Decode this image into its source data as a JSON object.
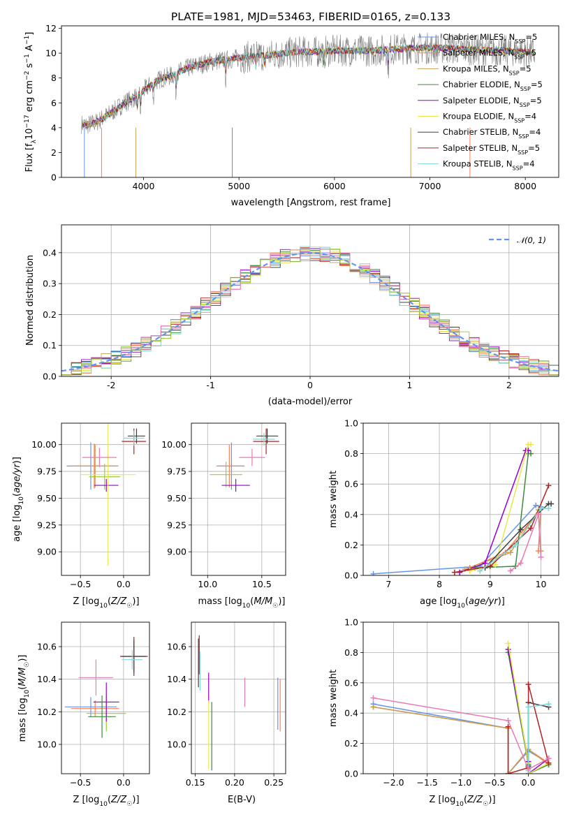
{
  "chart_data": [
    {
      "type": "line",
      "title": "PLATE=1981, MJD=53463, FIBERID=0165, z=0.133",
      "xlabel": "wavelength [Angstrom, rest frame]",
      "ylabel": "Flux [fλ10⁻¹⁷ erg cm⁻² s⁻¹ A⁻¹]",
      "xlim": [
        3140,
        8350
      ],
      "ylim": [
        0,
        12.2
      ],
      "xticks": [
        4000,
        5000,
        6000,
        7000,
        8000
      ],
      "yticks": [
        0,
        2,
        4,
        6,
        8,
        10,
        12
      ],
      "data_color": "#808080",
      "data_series": {
        "x": [
          3350,
          3400,
          3500,
          3600,
          3700,
          3800,
          3900,
          4000,
          4100,
          4200,
          4300,
          4400,
          4500,
          4600,
          4700,
          4800,
          4900,
          5000,
          5200,
          5400,
          5600,
          5800,
          6000,
          6200,
          6400,
          6600,
          6800,
          7000,
          7200,
          7400,
          7600,
          7800,
          8000,
          8100
        ],
        "y": [
          4.3,
          4.2,
          4.4,
          4.9,
          5.4,
          6.0,
          6.4,
          7.0,
          7.6,
          8.0,
          8.2,
          8.6,
          8.9,
          9.1,
          9.3,
          9.4,
          9.5,
          9.6,
          9.8,
          9.9,
          10.1,
          10.1,
          10.2,
          10.2,
          10.2,
          10.3,
          10.4,
          10.4,
          10.4,
          10.3,
          10.2,
          10.2,
          10.1,
          10.0
        ]
      },
      "legend_location": "upper right",
      "series": [
        {
          "name": "Chabrier MILES",
          "nssp": "5",
          "color": "#6495ed"
        },
        {
          "name": "Salpeter MILES",
          "nssp": "5",
          "color": "#ff7f50"
        },
        {
          "name": "Kroupa MILES",
          "nssp": "5",
          "color": "#c8a050"
        },
        {
          "name": "Chabrier ELODIE",
          "nssp": "5",
          "color": "#3c8c3c"
        },
        {
          "name": "Salpeter ELODIE",
          "nssp": "5",
          "color": "#9400d3"
        },
        {
          "name": "Kroupa ELODIE",
          "nssp": "4",
          "color": "#e8e84a"
        },
        {
          "name": "Chabrier STELIB",
          "nssp": "4",
          "color": "#404040"
        },
        {
          "name": "Salpeter STELIB",
          "nssp": "5",
          "color": "#b22222"
        },
        {
          "name": "Kroupa STELIB",
          "nssp": "4",
          "color": "#7fd8d8"
        }
      ]
    },
    {
      "type": "line",
      "xlabel": "(data-model)/error",
      "ylabel": "Normed distribution",
      "xlim": [
        -2.5,
        2.5
      ],
      "ylim": [
        0,
        0.49
      ],
      "xticks": [
        -2,
        -1,
        0,
        1,
        2
      ],
      "yticks": [
        0.0,
        0.1,
        0.2,
        0.3,
        0.4
      ],
      "legend": "𝒩(0, 1)",
      "legend_location": "upper right",
      "gaussian": {
        "mu": 0,
        "sigma": 1,
        "color": "#6495ed"
      },
      "bin_width": 0.1,
      "histogram_colors": [
        "#6495ed",
        "#ff7f50",
        "#c8a050",
        "#3c8c3c",
        "#9400d3",
        "#e8e84a",
        "#404040",
        "#b22222",
        "#7fd8d8",
        "#e87ab4",
        "#9acd32"
      ]
    },
    {
      "type": "scatter",
      "xlabel": "Z [log10(Z/Z☉)]",
      "ylabel": "age  [log10(age/yr)]",
      "xlim": [
        -0.72,
        0.3
      ],
      "ylim": [
        8.78,
        10.2
      ],
      "xticks": [
        -0.5,
        0.0
      ],
      "xtick_labels": [
        "−0.5",
        "0.0"
      ],
      "yticks": [
        9.0,
        9.25,
        9.5,
        9.75,
        10.0
      ],
      "ytick_labels": [
        "9.00",
        "9.25",
        "9.50",
        "9.75",
        "10.00"
      ],
      "points": [
        {
          "x": -0.38,
          "y": 9.8,
          "xerr": 0.28,
          "yerr": 0.22,
          "color": "#6495ed"
        },
        {
          "x": -0.34,
          "y": 9.8,
          "xerr": 0.28,
          "yerr": 0.21,
          "color": "#ff7f50"
        },
        {
          "x": -0.33,
          "y": 9.8,
          "xerr": 0.26,
          "yerr": 0.2,
          "color": "#c8a050"
        },
        {
          "x": -0.22,
          "y": 9.7,
          "xerr": 0.18,
          "yerr": 0.12,
          "color": "#9acd32"
        },
        {
          "x": -0.2,
          "y": 9.62,
          "xerr": 0.14,
          "yerr": 0.06,
          "color": "#9400d3"
        },
        {
          "x": -0.18,
          "y": 9.72,
          "xerr": 0.32,
          "yerr": 0.85,
          "color": "#e8e84a"
        },
        {
          "x": 0.12,
          "y": 10.03,
          "xerr": 0.14,
          "yerr": 0.12,
          "color": "#b22222"
        },
        {
          "x": 0.15,
          "y": 10.08,
          "xerr": 0.1,
          "yerr": 0.07,
          "color": "#404040"
        },
        {
          "x": 0.12,
          "y": 10.06,
          "xerr": 0.12,
          "yerr": 0.07,
          "color": "#7fd8d8"
        },
        {
          "x": -0.28,
          "y": 9.88,
          "xerr": 0.2,
          "yerr": 0.09,
          "color": "#e87ab4"
        }
      ]
    },
    {
      "type": "scatter",
      "xlabel": "mass [log10(M/M☉)]",
      "xlim": [
        9.85,
        10.72
      ],
      "ylim": [
        8.78,
        10.2
      ],
      "xticks": [
        10.0,
        10.5
      ],
      "xtick_labels": [
        "10.0",
        "10.5"
      ],
      "yticks": [
        9.0,
        9.25,
        9.5,
        9.75,
        10.0
      ],
      "ytick_labels": [
        "9.00",
        "9.25",
        "9.50",
        "9.75",
        "10.00"
      ],
      "points": [
        {
          "x": 10.22,
          "y": 9.8,
          "xerr": 0.12,
          "yerr": 0.22,
          "color": "#6495ed"
        },
        {
          "x": 10.2,
          "y": 9.8,
          "xerr": 0.12,
          "yerr": 0.2,
          "color": "#ff7f50"
        },
        {
          "x": 10.17,
          "y": 9.72,
          "xerr": 0.15,
          "yerr": 0.12,
          "color": "#9acd32"
        },
        {
          "x": 10.26,
          "y": 9.62,
          "xerr": 0.13,
          "yerr": 0.06,
          "color": "#9400d3"
        },
        {
          "x": 10.54,
          "y": 10.03,
          "xerr": 0.12,
          "yerr": 0.12,
          "color": "#b22222"
        },
        {
          "x": 10.55,
          "y": 10.08,
          "xerr": 0.1,
          "yerr": 0.07,
          "color": "#404040"
        },
        {
          "x": 10.52,
          "y": 10.05,
          "xerr": 0.1,
          "yerr": 0.06,
          "color": "#7fd8d8"
        },
        {
          "x": 10.41,
          "y": 9.88,
          "xerr": 0.12,
          "yerr": 0.08,
          "color": "#e87ab4"
        }
      ]
    },
    {
      "type": "line",
      "xlabel": "age  [log10(age/yr)]",
      "ylabel": "mass weight",
      "xlim": [
        6.5,
        10.35
      ],
      "ylim": [
        0,
        1.0
      ],
      "xticks": [
        7,
        8,
        9,
        10
      ],
      "yticks": [
        0.0,
        0.2,
        0.4,
        0.6,
        0.8,
        1.0
      ],
      "series": [
        {
          "color": "#6495ed",
          "x": [
            6.7,
            8.8,
            9.9,
            10.0
          ],
          "y": [
            0.01,
            0.06,
            0.46,
            0.45
          ]
        },
        {
          "color": "#ff7f50",
          "x": [
            8.6,
            9.3,
            10.0,
            9.95
          ],
          "y": [
            0.05,
            0.15,
            0.44,
            0.16
          ]
        },
        {
          "color": "#c8a050",
          "x": [
            8.5,
            9.4,
            9.95,
            10.0
          ],
          "y": [
            0.04,
            0.15,
            0.43,
            0.16
          ]
        },
        {
          "color": "#3c8c3c",
          "x": [
            8.7,
            9.5,
            9.75,
            9.8
          ],
          "y": [
            0.05,
            0.06,
            0.8,
            0.8
          ]
        },
        {
          "color": "#9400d3",
          "x": [
            8.4,
            8.9,
            9.7,
            9.75
          ],
          "y": [
            0.02,
            0.08,
            0.82,
            0.82
          ]
        },
        {
          "color": "#e8e84a",
          "x": [
            8.6,
            9.1,
            9.75,
            9.8
          ],
          "y": [
            0.03,
            0.07,
            0.86,
            0.86
          ]
        },
        {
          "color": "#404040",
          "x": [
            8.9,
            9.6,
            10.15,
            10.2
          ],
          "y": [
            0.05,
            0.3,
            0.47,
            0.47
          ]
        },
        {
          "color": "#b22222",
          "x": [
            8.3,
            9.0,
            9.8,
            10.15
          ],
          "y": [
            0.02,
            0.06,
            0.31,
            0.59
          ]
        },
        {
          "color": "#7fd8d8",
          "x": [
            8.8,
            9.5,
            10.0,
            10.15
          ],
          "y": [
            0.03,
            0.2,
            0.44,
            0.44
          ]
        },
        {
          "color": "#e87ab4",
          "x": [
            9.4,
            9.6,
            9.95,
            10.0
          ],
          "y": [
            0.03,
            0.08,
            0.4,
            0.12
          ]
        }
      ]
    },
    {
      "type": "scatter",
      "xlabel": "Z [log10(Z/Z☉)]",
      "ylabel": "mass [log10(M/M☉)]",
      "xlim": [
        -0.72,
        0.3
      ],
      "ylim": [
        9.82,
        10.75
      ],
      "xticks": [
        -0.5,
        0.0
      ],
      "xtick_labels": [
        "−0.5",
        "0.0"
      ],
      "yticks": [
        10.0,
        10.2,
        10.4,
        10.6
      ],
      "ytick_labels": [
        "10.0",
        "10.2",
        "10.4",
        "10.6"
      ],
      "points": [
        {
          "x": -0.38,
          "y": 10.23,
          "xerr": 0.3,
          "yerr": 0.06,
          "color": "#6495ed"
        },
        {
          "x": -0.33,
          "y": 10.22,
          "xerr": 0.28,
          "yerr": 0.05,
          "color": "#ff7f50"
        },
        {
          "x": -0.2,
          "y": 10.19,
          "xerr": 0.23,
          "yerr": 0.11,
          "color": "#9acd32"
        },
        {
          "x": -0.2,
          "y": 10.26,
          "xerr": 0.15,
          "yerr": 0.12,
          "color": "#9400d3"
        },
        {
          "x": -0.25,
          "y": 10.17,
          "xerr": 0.16,
          "yerr": 0.13,
          "color": "#3c8c3c"
        },
        {
          "x": -0.32,
          "y": 10.41,
          "xerr": 0.2,
          "yerr": 0.11,
          "color": "#e87ab4"
        },
        {
          "x": 0.12,
          "y": 10.54,
          "xerr": 0.16,
          "yerr": 0.12,
          "color": "#b22222"
        },
        {
          "x": 0.12,
          "y": 10.54,
          "xerr": 0.14,
          "yerr": 0.1,
          "color": "#404040"
        },
        {
          "x": 0.1,
          "y": 10.52,
          "xerr": 0.12,
          "yerr": 0.06,
          "color": "#7fd8d8"
        }
      ]
    },
    {
      "type": "scatter",
      "xlabel": "E(B-V)",
      "xlim": [
        0.145,
        0.265
      ],
      "ylim": [
        9.82,
        10.75
      ],
      "xticks": [
        0.15,
        0.2,
        0.25
      ],
      "xtick_labels": [
        "0.15",
        "0.20",
        "0.25"
      ],
      "yticks": [
        10.0,
        10.2,
        10.4,
        10.6
      ],
      "ytick_labels": [
        "10.0",
        "10.2",
        "10.4",
        "10.6"
      ],
      "points": [
        {
          "x": 0.154,
          "y": 10.5,
          "yerr": 0.15,
          "color": "#404040"
        },
        {
          "x": 0.155,
          "y": 10.55,
          "yerr": 0.12,
          "color": "#b22222"
        },
        {
          "x": 0.156,
          "y": 10.45,
          "yerr": 0.12,
          "color": "#7fd8d8"
        },
        {
          "x": 0.167,
          "y": 10.35,
          "yerr": 0.09,
          "color": "#9400d3"
        },
        {
          "x": 0.167,
          "y": 10.06,
          "yerr": 0.21,
          "color": "#e8e84a"
        },
        {
          "x": 0.171,
          "y": 10.05,
          "yerr": 0.21,
          "color": "#3c8c3c"
        },
        {
          "x": 0.213,
          "y": 10.32,
          "yerr": 0.09,
          "color": "#e87ab4"
        },
        {
          "x": 0.255,
          "y": 10.25,
          "yerr": 0.16,
          "color": "#6495ed"
        },
        {
          "x": 0.258,
          "y": 10.24,
          "yerr": 0.16,
          "color": "#ff7f50"
        }
      ]
    },
    {
      "type": "line",
      "xlabel": "Z [log10(Z/Z☉)]",
      "ylabel": "mass weight",
      "xlim": [
        -2.45,
        0.45
      ],
      "ylim": [
        0,
        1.0
      ],
      "xticks": [
        -2.0,
        -1.5,
        -1.0,
        -0.5,
        0.0
      ],
      "xtick_labels": [
        "−2.0",
        "−1.5",
        "−1.0",
        "−0.5",
        "0.0"
      ],
      "yticks": [
        0.0,
        0.2,
        0.4,
        0.6,
        0.8,
        1.0
      ],
      "series": [
        {
          "color": "#6495ed",
          "x": [
            -2.3,
            -0.3,
            -0.3,
            0.0,
            0.3
          ],
          "y": [
            0.46,
            0.3,
            0.0,
            0.15,
            0.07
          ]
        },
        {
          "color": "#ff7f50",
          "x": [
            -2.3,
            -0.3,
            -0.3,
            0.0,
            0.3
          ],
          "y": [
            0.44,
            0.3,
            0.0,
            0.16,
            0.07
          ]
        },
        {
          "color": "#c8a050",
          "x": [
            -2.3,
            -0.3,
            -0.3,
            0.0,
            0.3
          ],
          "y": [
            0.44,
            0.3,
            0.0,
            0.16,
            0.06
          ]
        },
        {
          "color": "#3c8c3c",
          "x": [
            -0.3,
            0.0,
            0.0,
            0.3
          ],
          "y": [
            0.8,
            0.06,
            0.0,
            0.06
          ]
        },
        {
          "color": "#9400d3",
          "x": [
            -0.3,
            0.0,
            0.0,
            0.3
          ],
          "y": [
            0.82,
            0.08,
            0.0,
            0.1
          ]
        },
        {
          "color": "#e8e84a",
          "x": [
            -0.3,
            0.0,
            0.0,
            0.3
          ],
          "y": [
            0.86,
            0.07,
            0.0,
            0.07
          ]
        },
        {
          "color": "#404040",
          "x": [
            0.0,
            0.0,
            0.3
          ],
          "y": [
            0.05,
            0.47,
            0.44
          ]
        },
        {
          "color": "#b22222",
          "x": [
            -0.3,
            -0.3,
            0.0,
            0.0,
            0.3
          ],
          "y": [
            0.31,
            0.0,
            0.04,
            0.59,
            0.07
          ]
        },
        {
          "color": "#7fd8d8",
          "x": [
            0.0,
            0.0,
            0.3
          ],
          "y": [
            0.02,
            0.44,
            0.46
          ]
        },
        {
          "color": "#e87ab4",
          "x": [
            -2.3,
            -0.3,
            0.0,
            0.3
          ],
          "y": [
            0.5,
            0.35,
            0.03,
            0.1
          ]
        }
      ]
    }
  ]
}
